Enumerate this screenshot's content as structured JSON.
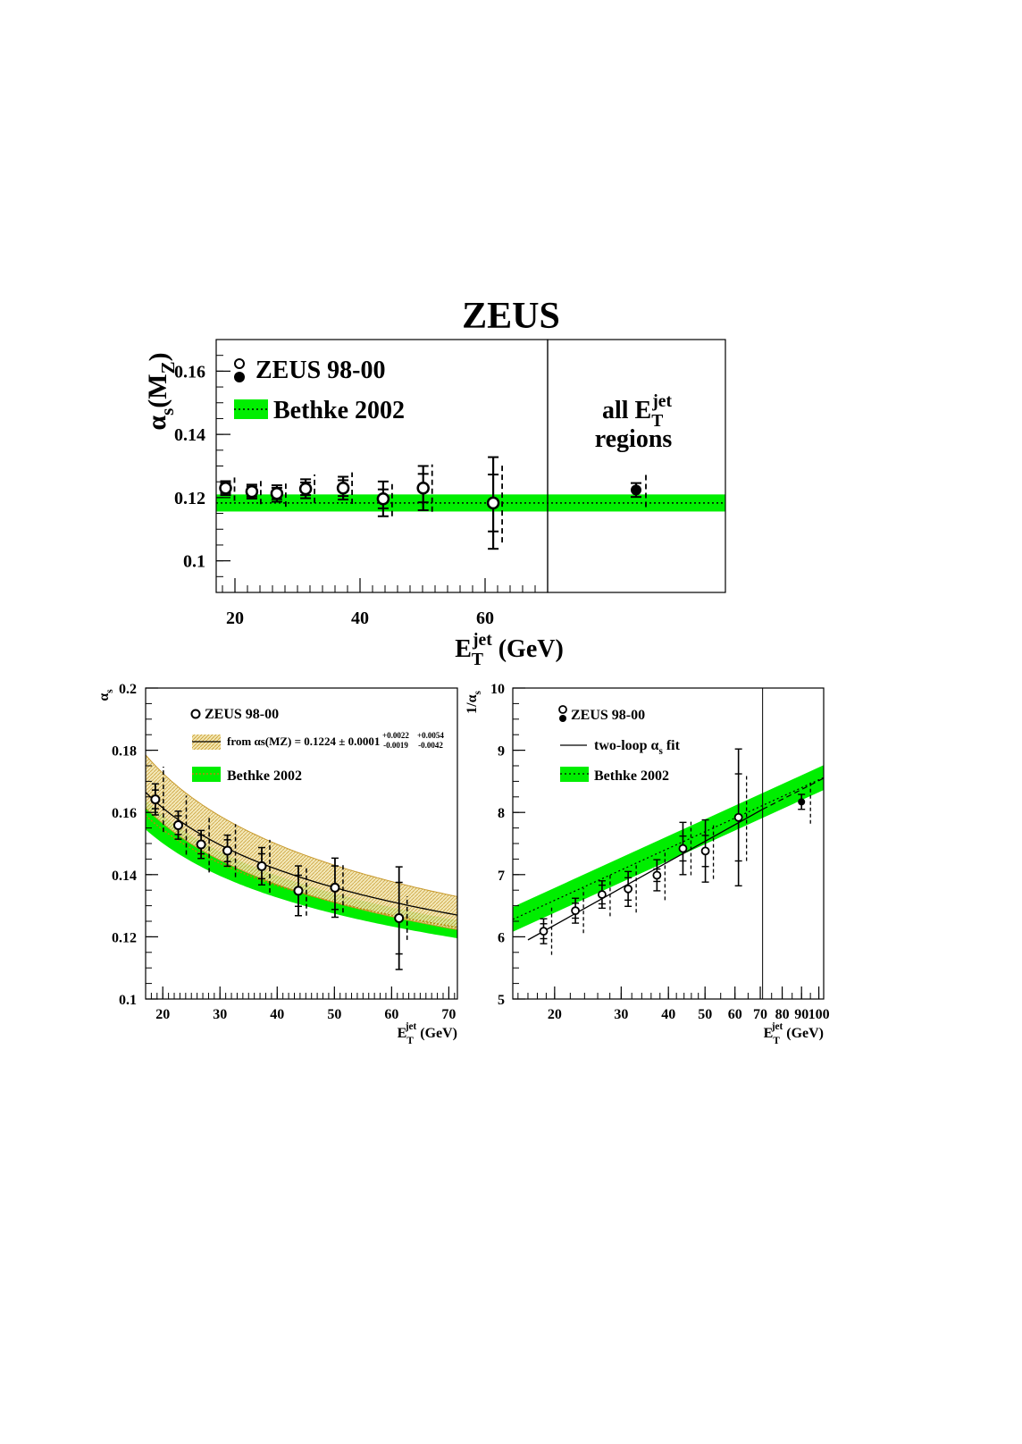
{
  "page_title": "ZEUS",
  "colors": {
    "band": "#00ee00",
    "hatch_fill": "#f2e6b0",
    "hatch_line": "#c89a2e",
    "curve": "#000000",
    "bethke_line": "#b8860b"
  },
  "chart_data": [
    {
      "id": "top",
      "type": "scatter",
      "title": "",
      "ylabel": "αs(MZ)",
      "xlabel": "E_T^jet (GeV)",
      "xlim": [
        17,
        70
      ],
      "ylim": [
        0.09,
        0.17
      ],
      "xticks": [
        "20",
        "40",
        "60"
      ],
      "yticks": [
        "0.1",
        "0.12",
        "0.14",
        "0.16"
      ],
      "legend": [
        "ZEUS 98-00",
        "Bethke 2002"
      ],
      "annotation": [
        "all E_T^jet",
        "regions"
      ],
      "band": {
        "name": "Bethke 2002",
        "center": 0.1183,
        "lo": 0.1156,
        "hi": 0.121
      },
      "series": [
        {
          "name": "ZEUS 98-00",
          "x": [
            18.5,
            22.7,
            26.7,
            31.3,
            37.3,
            43.7,
            50.1,
            61.3
          ],
          "y": [
            0.123,
            0.1219,
            0.1213,
            0.1228,
            0.123,
            0.1196,
            0.123,
            0.1183
          ],
          "stat": [
            0.0016,
            0.0016,
            0.0018,
            0.002,
            0.0025,
            0.003,
            0.0045,
            0.009
          ],
          "tot": [
            0.0022,
            0.0022,
            0.0026,
            0.003,
            0.0036,
            0.0055,
            0.007,
            0.0145
          ],
          "sys": [
            0.004,
            0.004,
            0.0042,
            0.0045,
            0.005,
            0.0055,
            0.0075,
            0.0125
          ]
        }
      ],
      "combined": {
        "y": 0.1224,
        "err": 0.0022,
        "sys": 0.0054
      }
    },
    {
      "id": "bottom-left",
      "type": "scatter",
      "ylabel": "αs",
      "xlabel": "E_T^jet (GeV)",
      "xlim": [
        17,
        71.5
      ],
      "ylim": [
        0.1,
        0.2
      ],
      "xticks": [
        "20",
        "30",
        "40",
        "50",
        "60",
        "70"
      ],
      "yticks": [
        "0.1",
        "0.12",
        "0.14",
        "0.16",
        "0.18",
        "0.2"
      ],
      "legend": [
        "ZEUS 98-00",
        "from αs(MZ) = 0.1224 ± 0.0001",
        "Bethke 2002"
      ],
      "legend_err": [
        "+0.0022",
        "-0.0019",
        "+0.0054",
        "-0.0042"
      ],
      "series": [
        {
          "name": "ZEUS 98-00",
          "x": [
            18.7,
            22.7,
            26.7,
            31.3,
            37.3,
            43.7,
            50.1,
            61.3
          ],
          "y": [
            0.1642,
            0.1559,
            0.1497,
            0.1477,
            0.1427,
            0.1348,
            0.1358,
            0.126
          ],
          "stat": [
            0.003,
            0.003,
            0.003,
            0.0035,
            0.004,
            0.005,
            0.007,
            0.0115
          ],
          "tot": [
            0.005,
            0.0045,
            0.0045,
            0.005,
            0.006,
            0.008,
            0.0095,
            0.0165
          ],
          "sys": [
            0.0105,
            0.0095,
            0.009,
            0.0085,
            0.0085,
            0.008,
            0.008,
            0.007
          ]
        }
      ]
    },
    {
      "id": "bottom-right",
      "type": "scatter",
      "ylabel": "1/αs",
      "xlabel": "E_T^jet (GeV)",
      "xscale": "log",
      "xlim": [
        15.5,
        103
      ],
      "ylim": [
        5,
        10
      ],
      "xticks": [
        "20",
        "30",
        "40",
        "50",
        "60",
        "70",
        "80",
        "90",
        "100"
      ],
      "yticks": [
        "5",
        "6",
        "7",
        "8",
        "9",
        "10"
      ],
      "legend": [
        "ZEUS 98-00",
        "two-loop αs fit",
        "Bethke 2002"
      ],
      "vline_x": 71,
      "series": [
        {
          "name": "ZEUS 98-00",
          "x": [
            18.7,
            22.7,
            26.7,
            31.3,
            37.3,
            43.7,
            50.1,
            61.3
          ],
          "y": [
            6.09,
            6.42,
            6.68,
            6.77,
            6.99,
            7.42,
            7.38,
            7.92
          ],
          "stat": [
            0.12,
            0.12,
            0.15,
            0.18,
            0.1,
            0.2,
            0.25,
            0.7
          ],
          "tot": [
            0.2,
            0.2,
            0.22,
            0.28,
            0.25,
            0.42,
            0.5,
            1.1
          ],
          "sys": [
            0.38,
            0.36,
            0.35,
            0.38,
            0.4,
            0.43,
            0.45,
            0.7
          ]
        }
      ],
      "combined": {
        "x": 90,
        "y": 8.17,
        "err": 0.12,
        "sys": 0.35
      }
    }
  ]
}
